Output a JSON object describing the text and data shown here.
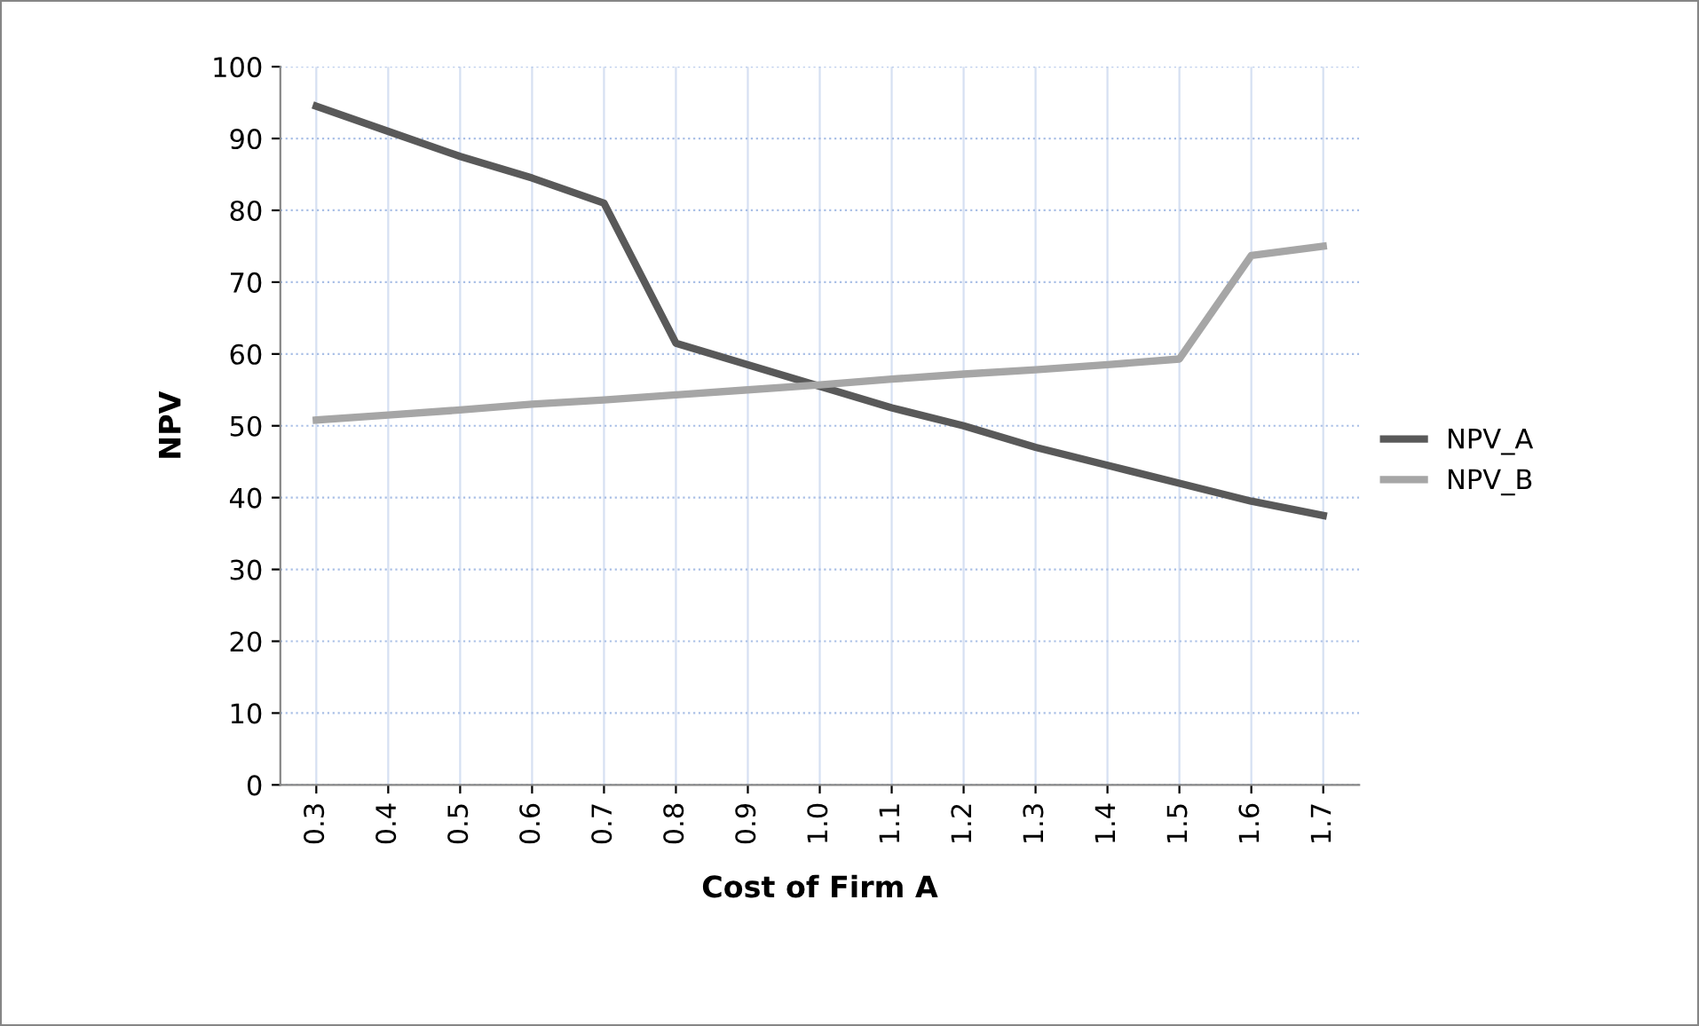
{
  "chart_data": {
    "type": "line",
    "xlabel": "Cost of Firm A",
    "ylabel": "NPV",
    "categories": [
      "0.3",
      "0.4",
      "0.5",
      "0.6",
      "0.7",
      "0.8",
      "0.9",
      "1.0",
      "1.1",
      "1.2",
      "1.3",
      "1.4",
      "1.5",
      "1.6",
      "1.7"
    ],
    "series": [
      {
        "name": "NPV_A",
        "color": "#595959",
        "values": [
          94.5,
          91,
          87.5,
          84.5,
          81,
          61.5,
          58.5,
          55.5,
          52.5,
          50,
          47,
          44.5,
          42,
          39.5,
          37.5
        ]
      },
      {
        "name": "NPV_B",
        "color": "#a6a6a6",
        "values": [
          50.8,
          51.5,
          52.2,
          53,
          53.6,
          54.3,
          55,
          55.7,
          56.5,
          57.2,
          57.8,
          58.5,
          59.3,
          73.7,
          75
        ]
      }
    ],
    "ylim": [
      0,
      100
    ],
    "yticks": [
      0,
      10,
      20,
      30,
      40,
      50,
      60,
      70,
      80,
      90,
      100
    ],
    "grid": true,
    "legend": "right",
    "marker": "none",
    "line_style": "solid"
  }
}
